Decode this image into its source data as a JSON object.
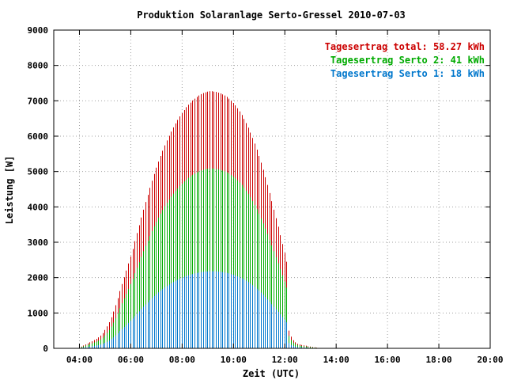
{
  "chart_data": {
    "type": "bar",
    "title": "Produktion Solaranlage Serto-Gressel 2010-07-03",
    "xlabel": "Zeit (UTC)",
    "ylabel": "Leistung [W]",
    "xlim": [
      3.0,
      20.0
    ],
    "ylim": [
      0,
      9000
    ],
    "x_ticks": [
      "04:00",
      "06:00",
      "08:00",
      "10:00",
      "12:00",
      "14:00",
      "16:00",
      "18:00",
      "20:00"
    ],
    "y_ticks": [
      "0",
      "1000",
      "2000",
      "3000",
      "4000",
      "5000",
      "6000",
      "7000",
      "8000",
      "9000"
    ],
    "grid": true,
    "legend_position": "top-right",
    "x_start_hours": 3.9,
    "x_step_minutes": 5,
    "series": [
      {
        "name": "Tagesertrag total: 58.27 kWh",
        "color": "#cc0000",
        "values": [
          5,
          25,
          50,
          80,
          110,
          140,
          170,
          200,
          235,
          270,
          310,
          360,
          430,
          520,
          620,
          740,
          880,
          1040,
          1220,
          1420,
          1620,
          1820,
          2010,
          2200,
          2400,
          2600,
          2810,
          3030,
          3260,
          3480,
          3700,
          3920,
          4140,
          4340,
          4540,
          4740,
          4930,
          5110,
          5280,
          5440,
          5590,
          5740,
          5880,
          6010,
          6130,
          6250,
          6360,
          6460,
          6560,
          6650,
          6740,
          6820,
          6890,
          6950,
          7010,
          7060,
          7110,
          7150,
          7190,
          7220,
          7240,
          7260,
          7270,
          7270,
          7260,
          7250,
          7230,
          7210,
          7180,
          7150,
          7110,
          7060,
          7000,
          6940,
          6870,
          6790,
          6700,
          6600,
          6490,
          6370,
          6240,
          6100,
          5950,
          5790,
          5620,
          5440,
          5250,
          5050,
          4840,
          4620,
          4390,
          4160,
          3920,
          3680,
          3440,
          3200,
          2950,
          2700,
          2450,
          500,
          330,
          230,
          170,
          130,
          110,
          95,
          85,
          75,
          60,
          50,
          40,
          30,
          20,
          10
        ]
      },
      {
        "name": "Tagesertrag Serto 2: 41 kWh",
        "color": "#00aa00",
        "values": [
          4,
          18,
          35,
          56,
          77,
          98,
          119,
          140,
          165,
          190,
          217,
          252,
          300,
          364,
          434,
          518,
          616,
          728,
          854,
          994,
          1134,
          1274,
          1407,
          1540,
          1680,
          1820,
          1967,
          2121,
          2282,
          2436,
          2590,
          2744,
          2898,
          3038,
          3178,
          3318,
          3451,
          3577,
          3696,
          3808,
          3913,
          4018,
          4116,
          4207,
          4291,
          4375,
          4452,
          4522,
          4592,
          4655,
          4718,
          4774,
          4823,
          4865,
          4907,
          4942,
          4977,
          5005,
          5033,
          5054,
          5068,
          5082,
          5089,
          5089,
          5082,
          5075,
          5061,
          5047,
          5026,
          5005,
          4977,
          4942,
          4900,
          4858,
          4809,
          4753,
          4690,
          4620,
          4543,
          4459,
          4368,
          4270,
          4165,
          4053,
          3934,
          3808,
          3675,
          3535,
          3388,
          3234,
          3073,
          2912,
          2744,
          2576,
          2408,
          2240,
          2065,
          1890,
          1715,
          350,
          231,
          161,
          119,
          91,
          77,
          67,
          60,
          53,
          42,
          35,
          28,
          21,
          14,
          7
        ]
      },
      {
        "name": "Tagesertrag Serto 1: 18 kWh",
        "color": "#0077cc",
        "values": [
          2,
          8,
          15,
          24,
          33,
          42,
          51,
          60,
          71,
          81,
          93,
          108,
          129,
          156,
          186,
          222,
          264,
          312,
          366,
          426,
          486,
          546,
          603,
          660,
          720,
          780,
          843,
          909,
          978,
          1044,
          1110,
          1176,
          1242,
          1302,
          1362,
          1422,
          1479,
          1533,
          1584,
          1632,
          1677,
          1722,
          1764,
          1803,
          1839,
          1875,
          1908,
          1938,
          1968,
          1995,
          2022,
          2046,
          2067,
          2085,
          2103,
          2118,
          2133,
          2145,
          2157,
          2166,
          2172,
          2178,
          2181,
          2181,
          2178,
          2175,
          2169,
          2163,
          2154,
          2145,
          2133,
          2118,
          2100,
          2082,
          2061,
          2037,
          2010,
          1980,
          1947,
          1911,
          1872,
          1830,
          1785,
          1737,
          1686,
          1632,
          1575,
          1515,
          1452,
          1386,
          1317,
          1248,
          1176,
          1104,
          1032,
          960,
          885,
          810,
          735,
          150,
          99,
          69,
          51,
          39,
          33,
          28,
          25,
          22,
          18,
          15,
          12,
          9,
          6,
          3
        ]
      }
    ]
  }
}
